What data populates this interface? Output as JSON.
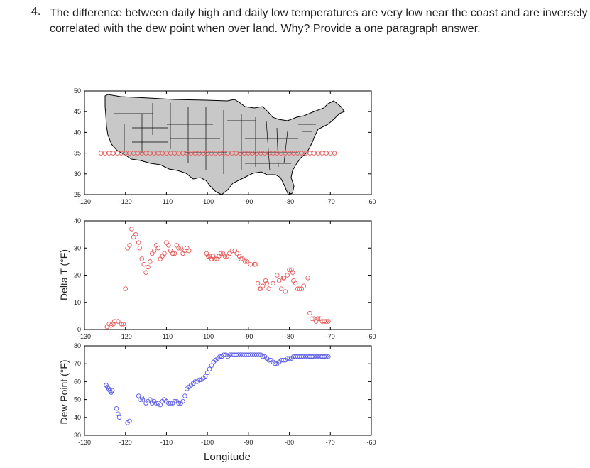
{
  "question": {
    "number": "4.",
    "text": "The difference between daily high and daily low temperatures are very low near the coast and are inversely correlated with the dew point when over land. Why? Provide a one paragraph answer."
  },
  "colors": {
    "red_series": "#e85a5a",
    "blue_series": "#5a5ae8",
    "map_fill": "#c8c8c8",
    "axis": "#000000"
  },
  "chart_data": [
    {
      "type": "scatter",
      "name": "map-panel",
      "xlabel": "",
      "ylabel": "",
      "xlim": [
        -130,
        -60
      ],
      "ylim": [
        25,
        50
      ],
      "xticks": [
        -130,
        -120,
        -110,
        -100,
        -90,
        -80,
        -70,
        -60
      ],
      "yticks": [
        25,
        30,
        35,
        40,
        45,
        50
      ],
      "background": "map of contiguous United States",
      "series": [
        {
          "color": "red",
          "x": [
            -126,
            -125,
            -124,
            -123,
            -122,
            -121,
            -120,
            -119,
            -118,
            -117,
            -116,
            -115,
            -114,
            -113,
            -112,
            -111,
            -110,
            -109,
            -108,
            -107,
            -106,
            -105,
            -104,
            -103,
            -102,
            -101,
            -100,
            -99,
            -98,
            -97,
            -96,
            -95,
            -94,
            -93,
            -92,
            -91,
            -90,
            -89,
            -88,
            -87,
            -86,
            -85,
            -84,
            -83,
            -82,
            -81,
            -80,
            -79,
            -78,
            -77,
            -76,
            -75,
            -74,
            -73,
            -72,
            -71,
            -70,
            -69
          ],
          "y": [
            35,
            35,
            35,
            35,
            35,
            35,
            35,
            35,
            35,
            35,
            35,
            35,
            35,
            35,
            35,
            35,
            35,
            35,
            35,
            35,
            35,
            35,
            35,
            35,
            35,
            35,
            35,
            35,
            35,
            35,
            35,
            35,
            35,
            35,
            35,
            35,
            35,
            35,
            35,
            35,
            35,
            35,
            35,
            35,
            35,
            35,
            35,
            35,
            35,
            35,
            35,
            35,
            35,
            35,
            35,
            35,
            35,
            35
          ]
        }
      ]
    },
    {
      "type": "scatter",
      "name": "delta-t-panel",
      "xlabel": "",
      "ylabel": "Delta T (°F)",
      "xlim": [
        -130,
        -60
      ],
      "ylim": [
        0,
        40
      ],
      "xticks": [
        -130,
        -120,
        -110,
        -100,
        -90,
        -80,
        -70,
        -60
      ],
      "yticks": [
        0,
        10,
        20,
        30,
        40
      ],
      "series": [
        {
          "color": "red",
          "x": [
            -124.5,
            -124,
            -123.5,
            -123,
            -122.7,
            -121.8,
            -121,
            -120.5,
            -120,
            -119.5,
            -119,
            -118.5,
            -118,
            -117.5,
            -116.8,
            -116.5,
            -116,
            -115.5,
            -115,
            -114.5,
            -114,
            -113.5,
            -113,
            -112.5,
            -112,
            -111.5,
            -111,
            -110.5,
            -110,
            -109.5,
            -109,
            -108.5,
            -108,
            -107.5,
            -107,
            -106.5,
            -106,
            -105.5,
            -105,
            -104.5,
            -100.2,
            -99.8,
            -99.4,
            -99,
            -98.6,
            -98.2,
            -97.7,
            -97.2,
            -96.7,
            -96.2,
            -95.7,
            -95.2,
            -94.6,
            -94,
            -93.3,
            -92.8,
            -92.2,
            -91.8,
            -91.4,
            -90.8,
            -90.3,
            -89.5,
            -88.5,
            -88.2,
            -87.7,
            -87.2,
            -87,
            -86.5,
            -85.8,
            -85.5,
            -85,
            -84,
            -83,
            -82.5,
            -82,
            -81.5,
            -81.3,
            -81,
            -80.5,
            -80,
            -79.5,
            -79.2,
            -79,
            -78.5,
            -78,
            -77.5,
            -77,
            -76.5,
            -75.5,
            -75,
            -74.5,
            -74,
            -73.5,
            -73,
            -72.5,
            -72,
            -71.5,
            -71,
            -70.5
          ],
          "y": [
            1,
            2,
            1.5,
            2,
            3,
            3,
            2,
            2,
            15,
            30,
            31,
            37,
            34,
            35,
            32,
            30,
            26,
            24,
            21,
            23,
            25,
            28,
            29,
            31,
            30,
            26,
            27,
            28,
            32,
            31,
            29,
            28,
            28,
            31,
            30,
            30,
            28,
            29,
            30,
            29,
            28,
            27,
            27,
            26,
            27,
            26,
            26,
            27,
            28,
            28,
            27,
            27,
            28,
            29,
            29,
            28,
            27,
            26,
            26,
            25,
            25,
            24,
            24,
            24,
            17,
            15,
            15,
            16,
            18,
            17,
            15,
            17,
            20,
            18,
            15,
            19,
            19,
            14,
            20,
            22,
            22,
            21,
            18,
            17,
            15,
            15,
            15,
            16,
            19,
            6,
            4,
            4,
            3,
            4,
            4,
            3,
            3,
            3,
            3
          ]
        }
      ]
    },
    {
      "type": "scatter",
      "name": "dew-point-panel",
      "xlabel": "Longitude",
      "ylabel": "Dew Point (°F)",
      "xlim": [
        -130,
        -60
      ],
      "ylim": [
        30,
        80
      ],
      "xticks": [
        -130,
        -120,
        -110,
        -100,
        -90,
        -80,
        -70,
        -60
      ],
      "yticks": [
        30,
        40,
        50,
        60,
        70,
        80
      ],
      "series": [
        {
          "color": "blue",
          "x": [
            -124.7,
            -124.4,
            -124.1,
            -123.8,
            -123.5,
            -123.2,
            -122.2,
            -121.8,
            -121.5,
            -119.5,
            -119,
            -116.8,
            -116.4,
            -116,
            -115.8,
            -115,
            -114.5,
            -114,
            -113.5,
            -113,
            -112.5,
            -112,
            -111.5,
            -111,
            -110.5,
            -110,
            -109.5,
            -109,
            -108.5,
            -108,
            -107.5,
            -107,
            -106.5,
            -106,
            -105.5,
            -105,
            -104.5,
            -104,
            -103.5,
            -103,
            -102.5,
            -102,
            -101.5,
            -101,
            -100.5,
            -100,
            -99.5,
            -99,
            -98.5,
            -98,
            -97.5,
            -97,
            -96.5,
            -96,
            -95.5,
            -95,
            -94.5,
            -94,
            -93.5,
            -93,
            -92.5,
            -92,
            -91.5,
            -91,
            -90.5,
            -90,
            -89.5,
            -89,
            -88.5,
            -88,
            -87.5,
            -87,
            -86.5,
            -86,
            -85.5,
            -85,
            -84.5,
            -84,
            -83.5,
            -83,
            -82.5,
            -82,
            -81.5,
            -81,
            -80.5,
            -80,
            -79.5,
            -79,
            -78.5,
            -78,
            -77.5,
            -77,
            -76.5,
            -76,
            -75.5,
            -75,
            -74.5,
            -74,
            -73.5,
            -73,
            -72.5,
            -72,
            -71.5,
            -71,
            -70.5
          ],
          "y": [
            58,
            57,
            56,
            55,
            54,
            55,
            45,
            42,
            40,
            37,
            38,
            52,
            50,
            51,
            50,
            48,
            49,
            50,
            48,
            49,
            48,
            48,
            47,
            49,
            50,
            49,
            48,
            48,
            48,
            49,
            49,
            48,
            48,
            49,
            52,
            56,
            57,
            58,
            59,
            60,
            60,
            61,
            61,
            62,
            63,
            65,
            67,
            69,
            71,
            72,
            73,
            74,
            74,
            75,
            75,
            74,
            75,
            75,
            75,
            75,
            75,
            75,
            75,
            75,
            75,
            75,
            75,
            75,
            75,
            75,
            75,
            75,
            74,
            74,
            73,
            72,
            72,
            71,
            70,
            70,
            71,
            72,
            72,
            72,
            73,
            73,
            73,
            74,
            74,
            74,
            74,
            74,
            74,
            74,
            74,
            74,
            74,
            74,
            74,
            74,
            74,
            74,
            74,
            74,
            74
          ]
        }
      ]
    }
  ]
}
